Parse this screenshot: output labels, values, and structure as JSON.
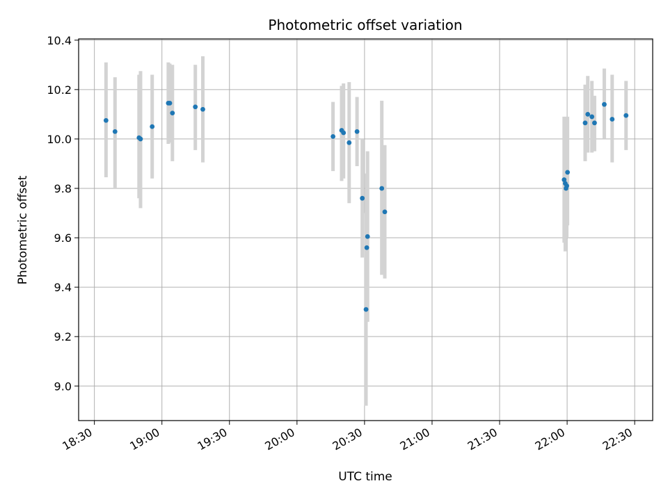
{
  "chart_data": {
    "type": "scatter",
    "title": "Photometric offset variation",
    "xlabel": "UTC time",
    "ylabel": "Photometric offset",
    "grid": true,
    "xlim": [
      "18:23",
      "22:38"
    ],
    "ylim": [
      8.86,
      10.405
    ],
    "x_ticks": [
      "18:30",
      "19:00",
      "19:30",
      "20:00",
      "20:30",
      "21:00",
      "21:30",
      "22:00",
      "22:30"
    ],
    "y_ticks": [
      "9.0",
      "9.2",
      "9.4",
      "9.6",
      "9.8",
      "10.0",
      "10.2",
      "10.4"
    ],
    "colors": {
      "point": "#1f77b4",
      "error_bar": "#d3d3d3",
      "grid": "#b0b0b0"
    },
    "points": [
      {
        "x": "18:35:10",
        "y": 10.075,
        "err_low": 9.845,
        "err_high": 10.31
      },
      {
        "x": "18:39:10",
        "y": 10.03,
        "err_low": 9.8,
        "err_high": 10.25
      },
      {
        "x": "18:49:50",
        "y": 10.005,
        "err_low": 9.76,
        "err_high": 10.26
      },
      {
        "x": "18:50:30",
        "y": 10.0,
        "err_low": 9.72,
        "err_high": 10.275
      },
      {
        "x": "18:55:40",
        "y": 10.05,
        "err_low": 9.84,
        "err_high": 10.26
      },
      {
        "x": "19:02:50",
        "y": 10.145,
        "err_low": 9.98,
        "err_high": 10.31
      },
      {
        "x": "19:03:30",
        "y": 10.145,
        "err_low": 9.985,
        "err_high": 10.305
      },
      {
        "x": "19:04:40",
        "y": 10.105,
        "err_low": 9.91,
        "err_high": 10.3
      },
      {
        "x": "19:14:50",
        "y": 10.13,
        "err_low": 9.955,
        "err_high": 10.3
      },
      {
        "x": "19:18:10",
        "y": 10.12,
        "err_low": 9.905,
        "err_high": 10.335
      },
      {
        "x": "20:16:00",
        "y": 10.01,
        "err_low": 9.87,
        "err_high": 10.15
      },
      {
        "x": "20:19:50",
        "y": 10.035,
        "err_low": 9.83,
        "err_high": 10.215
      },
      {
        "x": "20:20:40",
        "y": 10.025,
        "err_low": 9.84,
        "err_high": 10.225
      },
      {
        "x": "20:23:10",
        "y": 9.985,
        "err_low": 9.74,
        "err_high": 10.23
      },
      {
        "x": "20:26:40",
        "y": 10.03,
        "err_low": 9.89,
        "err_high": 10.17
      },
      {
        "x": "20:29:00",
        "y": 9.76,
        "err_low": 9.52,
        "err_high": 10.0
      },
      {
        "x": "20:30:40",
        "y": 9.31,
        "err_low": 8.92,
        "err_high": 9.7
      },
      {
        "x": "20:31:00",
        "y": 9.56,
        "err_low": 9.26,
        "err_high": 9.86
      },
      {
        "x": "20:31:20",
        "y": 9.605,
        "err_low": 9.26,
        "err_high": 9.95
      },
      {
        "x": "20:37:40",
        "y": 9.8,
        "err_low": 9.45,
        "err_high": 10.155
      },
      {
        "x": "20:39:00",
        "y": 9.705,
        "err_low": 9.435,
        "err_high": 9.975
      },
      {
        "x": "21:58:40",
        "y": 9.835,
        "err_low": 9.58,
        "err_high": 10.09
      },
      {
        "x": "21:59:10",
        "y": 9.82,
        "err_low": 9.545,
        "err_high": 10.09
      },
      {
        "x": "21:59:30",
        "y": 9.8,
        "err_low": 9.6,
        "err_high": 10.0
      },
      {
        "x": "21:59:50",
        "y": 9.81,
        "err_low": 9.6,
        "err_high": 10.02
      },
      {
        "x": "22:00:10",
        "y": 9.865,
        "err_low": 9.65,
        "err_high": 10.09
      },
      {
        "x": "22:08:00",
        "y": 10.065,
        "err_low": 9.91,
        "err_high": 10.22
      },
      {
        "x": "22:09:10",
        "y": 10.1,
        "err_low": 9.945,
        "err_high": 10.255
      },
      {
        "x": "22:11:00",
        "y": 10.09,
        "err_low": 9.945,
        "err_high": 10.235
      },
      {
        "x": "22:12:10",
        "y": 10.065,
        "err_low": 9.95,
        "err_high": 10.175
      },
      {
        "x": "22:16:30",
        "y": 10.14,
        "err_low": 10.0,
        "err_high": 10.285
      },
      {
        "x": "22:20:00",
        "y": 10.08,
        "err_low": 9.905,
        "err_high": 10.26
      },
      {
        "x": "22:26:10",
        "y": 10.095,
        "err_low": 9.955,
        "err_high": 10.235
      }
    ]
  }
}
